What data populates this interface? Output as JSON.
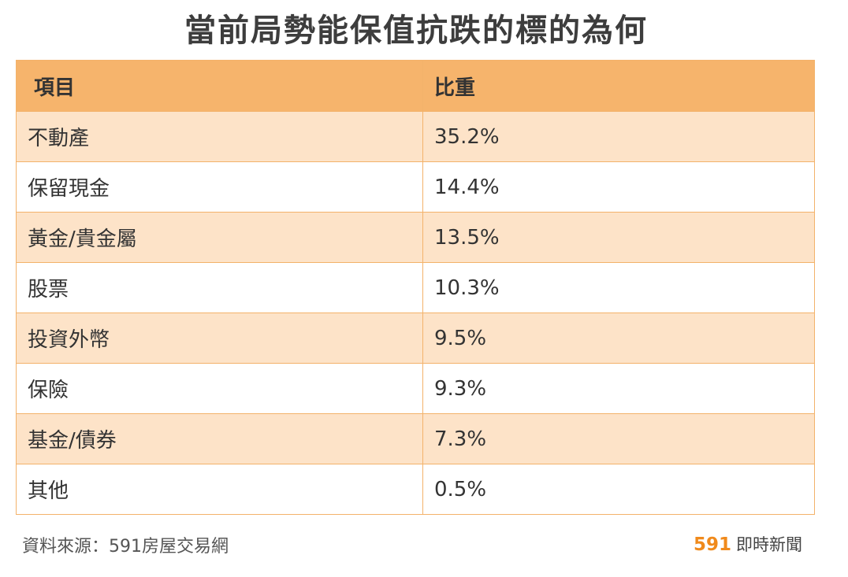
{
  "title": "當前局勢能保值抗跌的標的為何",
  "table": {
    "headers": [
      "項目",
      "比重"
    ],
    "rows": [
      [
        "不動產",
        "35.2%"
      ],
      [
        "保留現金",
        "14.4%"
      ],
      [
        "黃金/貴金屬",
        "13.5%"
      ],
      [
        "股票",
        "10.3%"
      ],
      [
        "投資外幣",
        "9.5%"
      ],
      [
        "保險",
        "9.3%"
      ],
      [
        "基金/債券",
        "7.3%"
      ],
      [
        "其他",
        "0.5%"
      ]
    ]
  },
  "chart_data": {
    "type": "table",
    "title": "當前局勢能保值抗跌的標的為何",
    "columns": [
      "項目",
      "比重"
    ],
    "categories": [
      "不動產",
      "保留現金",
      "黃金/貴金屬",
      "股票",
      "投資外幣",
      "保險",
      "基金/債券",
      "其他"
    ],
    "values": [
      35.2,
      14.4,
      13.5,
      10.3,
      9.5,
      9.3,
      7.3,
      0.5
    ]
  },
  "footer": {
    "source": "資料來源：591房屋交易網",
    "brand_number": "591",
    "brand_text": "即時新聞"
  },
  "colors": {
    "header_bg": "#f6b46c",
    "stripe_bg": "#fde3c8",
    "border": "#f3b26a",
    "brand_accent": "#f08a1c"
  }
}
